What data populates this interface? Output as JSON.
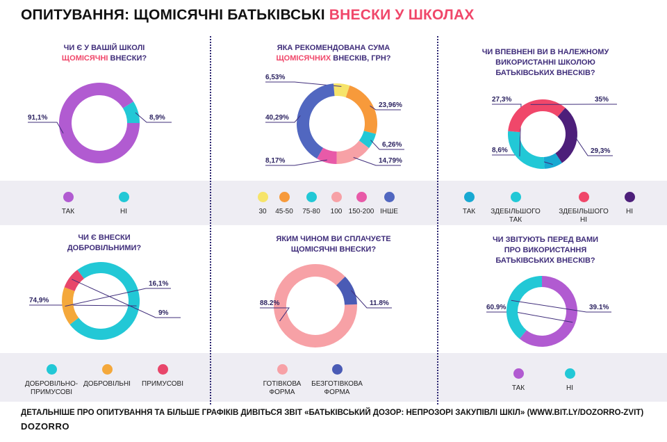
{
  "title": {
    "part1": "ОПИТУВАННЯ: ЩОМІСЯЧНІ БАТЬКІВСЬКІ ",
    "part2": "ВНЕСКИ У ШКОЛАХ"
  },
  "colors": {
    "purple": "#b15bd1",
    "teal": "#22c8d6",
    "yellow": "#f6e46a",
    "orange": "#f79a3b",
    "pink": "#f7a1a6",
    "magenta": "#e85aa8",
    "blue": "#5167c0",
    "tak_blue": "#18a9d2",
    "red": "#f0476a",
    "darkpurple": "#4d1f7a",
    "amber": "#f4a83b",
    "crimson": "#e8466a",
    "accent": "#f0476a"
  },
  "chart_data": [
    {
      "type": "pie",
      "question": [
        "ЧИ Є У ВАШІЙ ШКОЛІ",
        "ЩОМІСЯЧНІ",
        " ВНЕСКИ?"
      ],
      "slices": [
        {
          "label": "ТАК",
          "value": 91.1,
          "text": "91,1%",
          "color": "#b15bd1"
        },
        {
          "label": "НІ",
          "value": 8.9,
          "text": "8,9%",
          "color": "#22c8d6"
        }
      ]
    },
    {
      "type": "pie",
      "question": [
        "ЯКА РЕКОМЕНДОВАНА СУМА",
        "ЩОМІСЯЧНИХ",
        " ВНЕСКІВ, ГРН?"
      ],
      "slices": [
        {
          "label": "30",
          "value": 6.53,
          "text": "6,53%",
          "color": "#f6e46a"
        },
        {
          "label": "45-50",
          "value": 23.96,
          "text": "23,96%",
          "color": "#f79a3b"
        },
        {
          "label": "75-80",
          "value": 6.26,
          "text": "6,26%",
          "color": "#22c8d6"
        },
        {
          "label": "100",
          "value": 14.79,
          "text": "14,79%",
          "color": "#f7a1a6"
        },
        {
          "label": "150-200",
          "value": 8.17,
          "text": "8,17%",
          "color": "#e85aa8"
        },
        {
          "label": "ІНШЕ",
          "value": 40.29,
          "text": "40,29%",
          "color": "#5167c0"
        }
      ]
    },
    {
      "type": "pie",
      "question": [
        "ЧИ ВПЕВНЕНІ ВИ В НАЛЕЖНОМУ",
        "ВИКОРИСТАННІ ШКОЛОЮ",
        "БАТЬКІВСЬКИХ ВНЕСКІВ?"
      ],
      "slices": [
        {
          "label": "ТАК",
          "value": 8.6,
          "text": "8,6%",
          "color": "#18a9d2"
        },
        {
          "label": "ЗДЕБІЛЬШОГО ТАК",
          "value": 27.3,
          "text": "27,3%",
          "color": "#22c8d6"
        },
        {
          "label": "ЗДЕБІЛЬШОГО НІ",
          "value": 35,
          "text": "35%",
          "color": "#f0476a"
        },
        {
          "label": "НІ",
          "value": 29.3,
          "text": "29,3%",
          "color": "#4d1f7a"
        }
      ]
    },
    {
      "type": "pie",
      "question": [
        "ЧИ Є ВНЕСКИ",
        "ДОБРОВІЛЬНИМИ?"
      ],
      "slices": [
        {
          "label": "ДОБРОВІЛЬНО-ПРИМУСОВІ",
          "value": 74.9,
          "text": "74,9%",
          "color": "#22c8d6"
        },
        {
          "label": "ДОБРОВІЛЬНІ",
          "value": 16.1,
          "text": "16,1%",
          "color": "#f4a83b"
        },
        {
          "label": "ПРИМУСОВІ",
          "value": 9,
          "text": "9%",
          "color": "#e8466a"
        }
      ]
    },
    {
      "type": "pie",
      "question": [
        "ЯКИМ ЧИНОМ ВИ СПЛАЧУЄТЕ",
        "ЩОМІСЯЧНІ ВНЕСКИ?"
      ],
      "slices": [
        {
          "label": "ГОТІВКОВА ФОРМА",
          "value": 88.2,
          "text": "88.2%",
          "color": "#f7a1a6"
        },
        {
          "label": "БЕЗГОТІВКОВА ФОРМА",
          "value": 11.8,
          "text": "11.8%",
          "color": "#4a5bb5"
        }
      ]
    },
    {
      "type": "pie",
      "question": [
        "ЧИ ЗВІТУЮТЬ ПЕРЕД ВАМИ",
        "ПРО ВИКОРИСТАННЯ",
        "БАТЬКІВСЬКИХ ВНЕСКІВ?"
      ],
      "slices": [
        {
          "label": "ТАК",
          "value": 60.9,
          "text": "60.9%",
          "color": "#b15bd1"
        },
        {
          "label": "НІ",
          "value": 39.1,
          "text": "39.1%",
          "color": "#22c8d6"
        }
      ]
    }
  ],
  "footer": {
    "text": "ДЕТАЛЬНІШЕ ПРО ОПИТУВАННЯ ТА БІЛЬШЕ ГРАФІКІВ ДИВІТЬСЯ ЗВІТ «БАТЬКІВСЬКИЙ ДОЗОР: НЕПРОЗОРІ ЗАКУПІВЛІ ШКІЛ» (WWW.BIT.LY/DOZORRO-ZVIT)",
    "brand": "DOZORRO"
  }
}
